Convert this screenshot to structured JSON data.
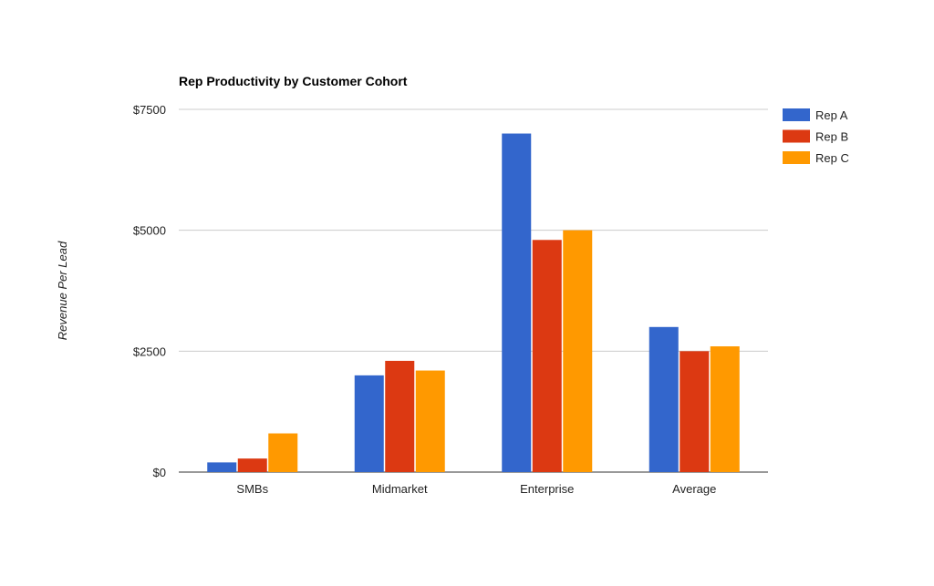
{
  "chart_data": {
    "type": "bar",
    "title": "Rep Productivity by Customer Cohort",
    "xlabel": "",
    "ylabel": "Revenue Per Lead",
    "categories": [
      "SMBs",
      "Midmarket",
      "Enterprise",
      "Average"
    ],
    "series": [
      {
        "name": "Rep A",
        "color": "#3366cc",
        "values": [
          200,
          2000,
          7000,
          3000
        ]
      },
      {
        "name": "Rep B",
        "color": "#dc3912",
        "values": [
          280,
          2300,
          4800,
          2500
        ]
      },
      {
        "name": "Rep C",
        "color": "#ff9900",
        "values": [
          800,
          2100,
          5000,
          2600
        ]
      }
    ],
    "ylim": [
      0,
      7500
    ],
    "yticks": [
      0,
      2500,
      5000,
      7500
    ],
    "ytick_labels": [
      "$0",
      "$2500",
      "$5000",
      "$7500"
    ],
    "grid": true,
    "legend": "right"
  }
}
